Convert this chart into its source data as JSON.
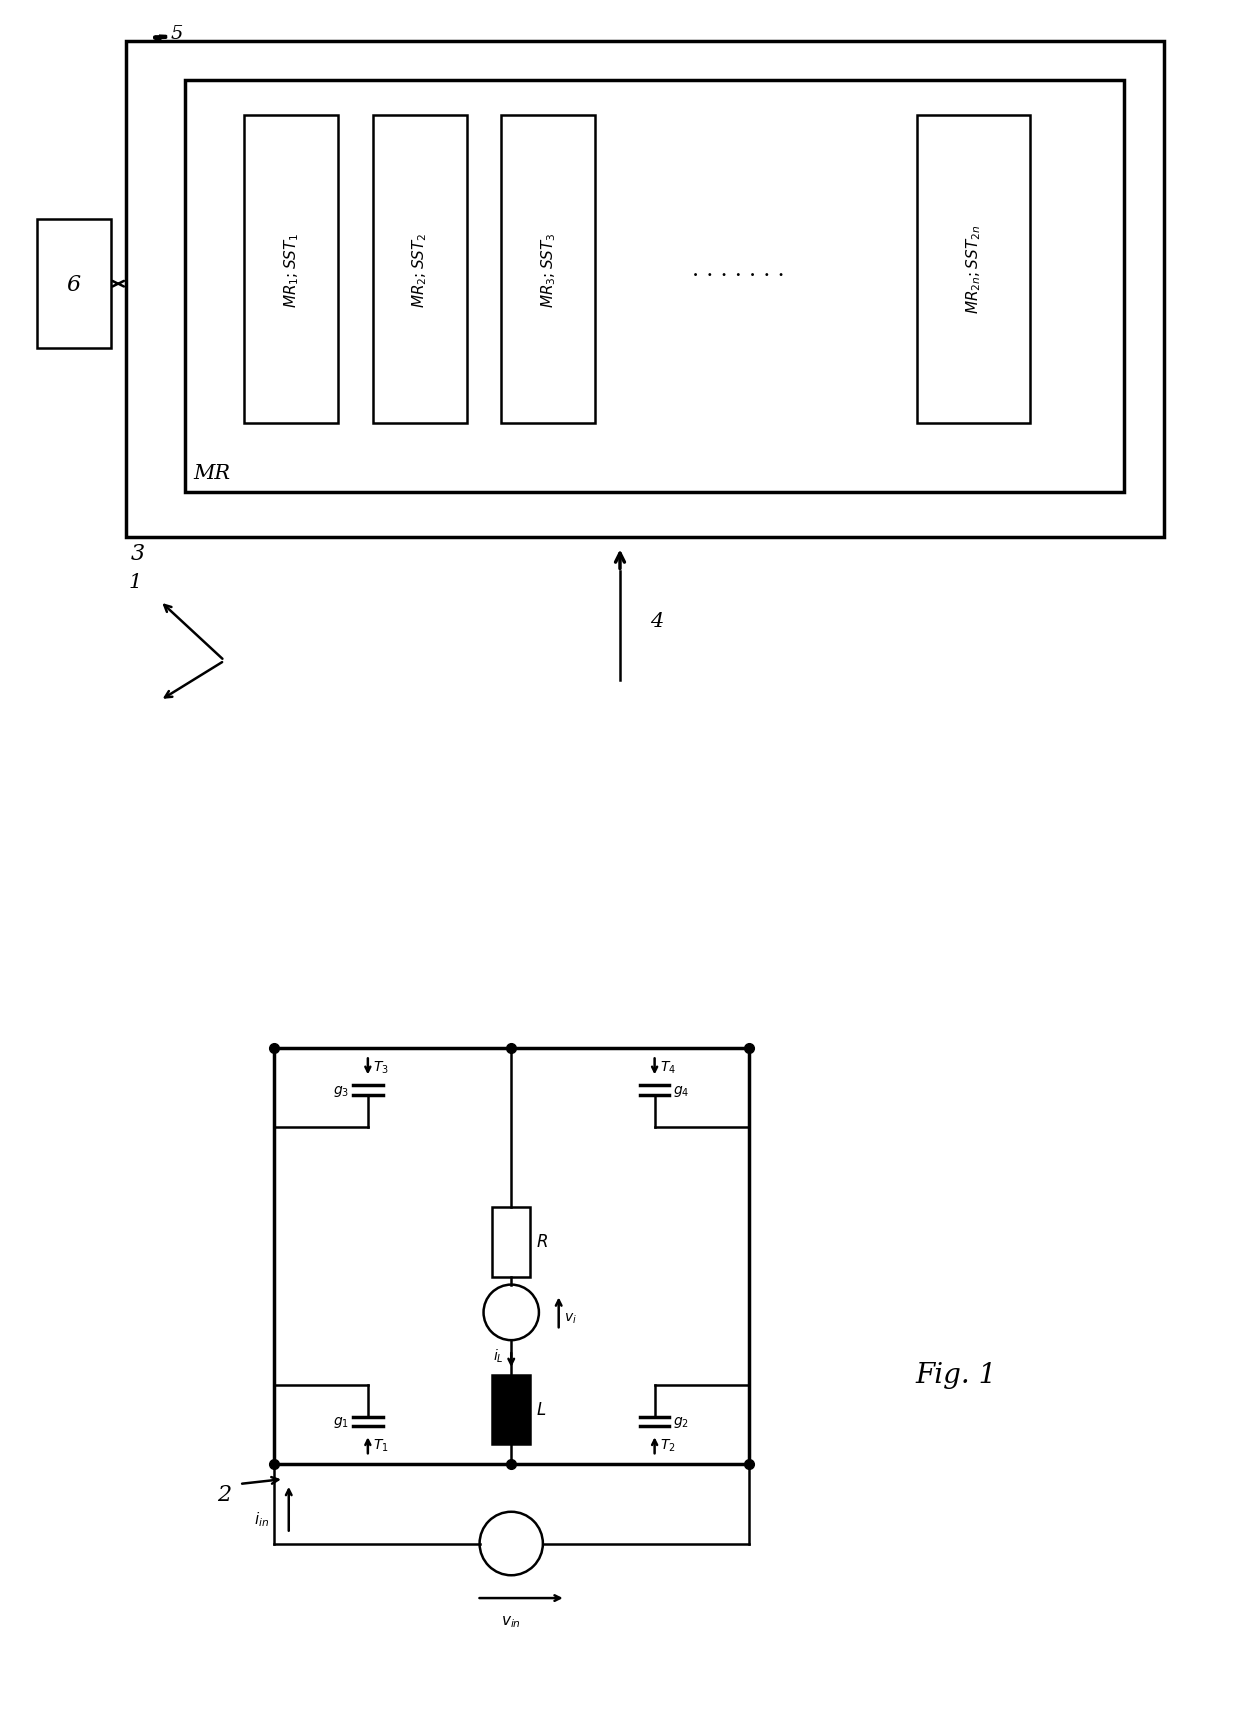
{
  "bg_color": "#ffffff",
  "line_color": "#000000",
  "fig_label": "Fig. 1"
}
